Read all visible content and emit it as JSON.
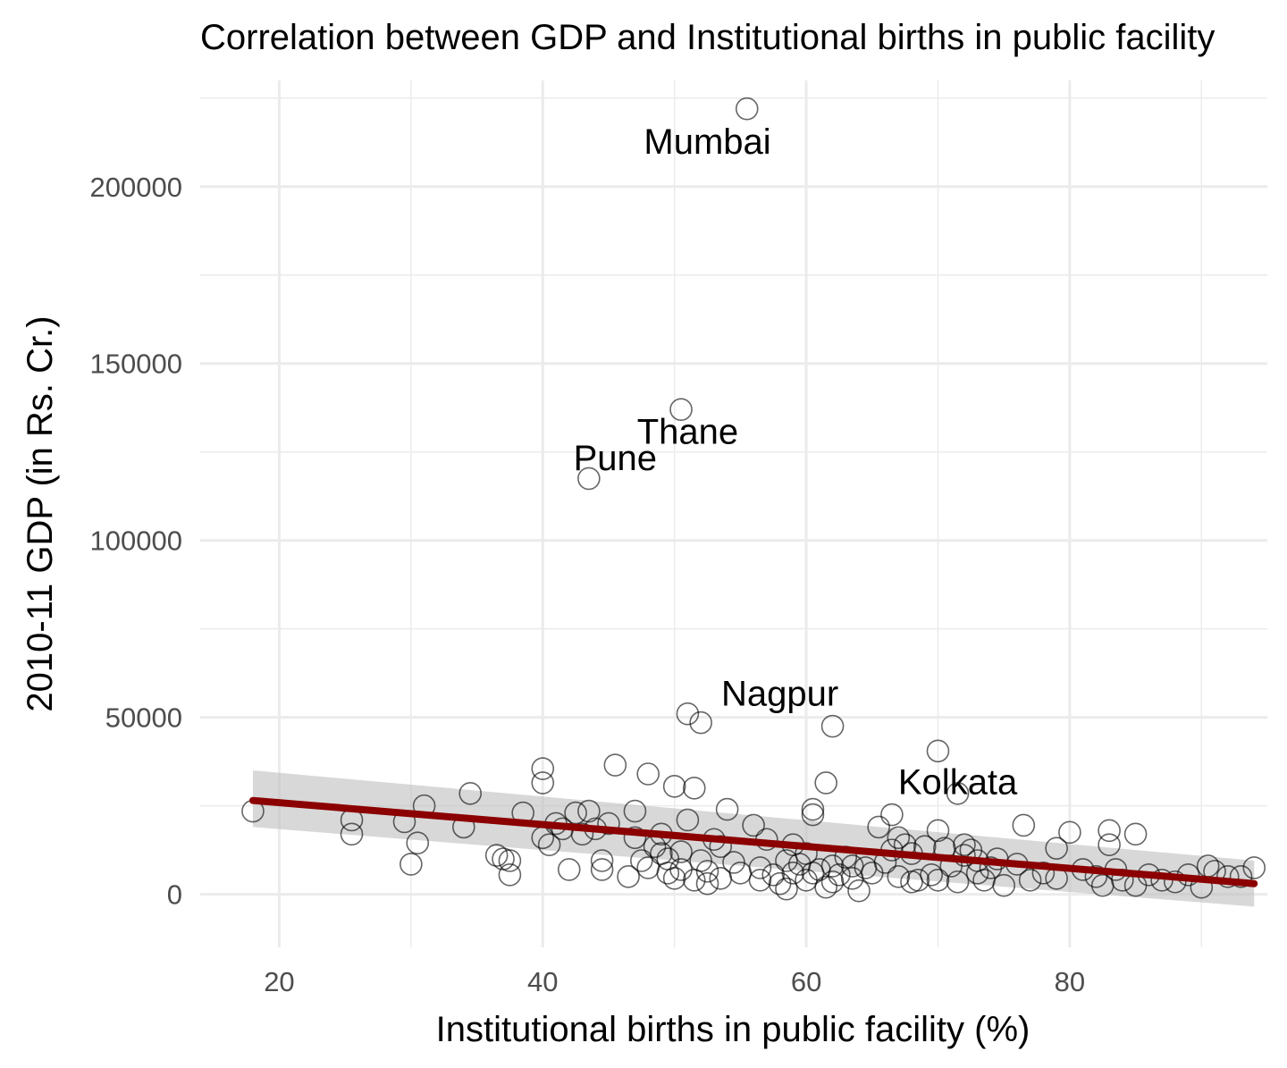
{
  "chart_data": {
    "type": "scatter",
    "title": "Correlation between GDP and Institutional births in public facility",
    "xlabel": "Institutional births in public facility (%)",
    "ylabel": "2010-11 GDP (in Rs. Cr.)",
    "xlim": [
      14,
      95
    ],
    "ylim": [
      -15000,
      230000
    ],
    "x_ticks": [
      20,
      40,
      60,
      80
    ],
    "y_ticks": [
      0,
      50000,
      100000,
      150000,
      200000
    ],
    "x_tick_labels": [
      "20",
      "40",
      "60",
      "80"
    ],
    "y_tick_labels": [
      "0",
      "50000",
      "100000",
      "150000",
      "200000"
    ],
    "grid": true,
    "legend": "none",
    "colors": {
      "points": "#000000",
      "trend": "#8b0000",
      "ribbon": "#bebebe",
      "grid": "#ebebeb"
    },
    "trend_line": {
      "method": "linear",
      "x": [
        18,
        94
      ],
      "y": [
        26500,
        3000
      ],
      "ci_lower": [
        19000,
        -3500
      ],
      "ci_upper": [
        35000,
        9500
      ]
    },
    "annotations": [
      {
        "label": "Mumbai",
        "x": 55.5,
        "y": 222000
      },
      {
        "label": "Thane",
        "x": 50.5,
        "y": 137000
      },
      {
        "label": "Pune",
        "x": 43.5,
        "y": 117500
      },
      {
        "label": "Nagpur",
        "x": 62,
        "y": 47500
      },
      {
        "label": "Kolkata",
        "x": 71.5,
        "y": 28500
      }
    ],
    "annotation_text": [
      {
        "label": "Mumbai",
        "x": 52.5,
        "y": 212000
      },
      {
        "label": "Thane",
        "x": 51,
        "y": 130000
      },
      {
        "label": "Pune",
        "x": 45.5,
        "y": 122500
      },
      {
        "label": "Nagpur",
        "x": 58,
        "y": 56000
      },
      {
        "label": "Kolkata",
        "x": 71.5,
        "y": 31000
      }
    ],
    "points": [
      [
        18,
        23500
      ],
      [
        25.5,
        21000
      ],
      [
        25.5,
        17000
      ],
      [
        29.5,
        20500
      ],
      [
        30,
        8500
      ],
      [
        30.5,
        14500
      ],
      [
        31,
        25000
      ],
      [
        34,
        19000
      ],
      [
        34.5,
        28500
      ],
      [
        36.5,
        11000
      ],
      [
        37,
        10000
      ],
      [
        37.5,
        5500
      ],
      [
        37.5,
        9500
      ],
      [
        38.5,
        23000
      ],
      [
        40,
        16000
      ],
      [
        40,
        35500
      ],
      [
        40,
        31500
      ],
      [
        40.5,
        14000
      ],
      [
        41,
        20000
      ],
      [
        41.5,
        18500
      ],
      [
        42,
        7000
      ],
      [
        42.5,
        23000
      ],
      [
        43,
        17000
      ],
      [
        43.5,
        117500
      ],
      [
        43.5,
        23500
      ],
      [
        44,
        18500
      ],
      [
        44.5,
        7000
      ],
      [
        44.5,
        9500
      ],
      [
        45,
        20000
      ],
      [
        45.5,
        36500
      ],
      [
        46.5,
        5000
      ],
      [
        47,
        23500
      ],
      [
        47,
        16000
      ],
      [
        47.5,
        9500
      ],
      [
        48,
        34000
      ],
      [
        48,
        7500
      ],
      [
        48.5,
        13500
      ],
      [
        49,
        11500
      ],
      [
        49,
        17000
      ],
      [
        49.5,
        6000
      ],
      [
        49.5,
        10000
      ],
      [
        50,
        30500
      ],
      [
        50,
        4500
      ],
      [
        50.5,
        137000
      ],
      [
        50.5,
        12000
      ],
      [
        50.5,
        7000
      ],
      [
        51,
        51000
      ],
      [
        51,
        21000
      ],
      [
        51.5,
        4000
      ],
      [
        51.5,
        30000
      ],
      [
        52,
        48500
      ],
      [
        52,
        9500
      ],
      [
        52.5,
        6500
      ],
      [
        52.5,
        3000
      ],
      [
        53,
        15500
      ],
      [
        53.5,
        13500
      ],
      [
        53.5,
        4500
      ],
      [
        54,
        24000
      ],
      [
        54.5,
        9000
      ],
      [
        55,
        6000
      ],
      [
        55.5,
        222000
      ],
      [
        56,
        19500
      ],
      [
        56.5,
        4000
      ],
      [
        56.5,
        7500
      ],
      [
        57,
        15500
      ],
      [
        57.5,
        5500
      ],
      [
        58,
        3000
      ],
      [
        58.5,
        1500
      ],
      [
        58.5,
        9500
      ],
      [
        59,
        14000
      ],
      [
        59,
        6000
      ],
      [
        59.5,
        8500
      ],
      [
        60,
        4000
      ],
      [
        60,
        11500
      ],
      [
        60.5,
        6000
      ],
      [
        60.5,
        24000
      ],
      [
        60.5,
        22500
      ],
      [
        61,
        7000
      ],
      [
        61.5,
        31500
      ],
      [
        61.5,
        2000
      ],
      [
        62,
        47500
      ],
      [
        62,
        8000
      ],
      [
        62,
        3500
      ],
      [
        62.5,
        5500
      ],
      [
        63,
        10500
      ],
      [
        63.5,
        8000
      ],
      [
        63.5,
        4500
      ],
      [
        64,
        1000
      ],
      [
        64.5,
        7500
      ],
      [
        65,
        6000
      ],
      [
        65.5,
        19000
      ],
      [
        66,
        9000
      ],
      [
        66.5,
        22500
      ],
      [
        66.5,
        12500
      ],
      [
        67,
        16000
      ],
      [
        67,
        5000
      ],
      [
        67.5,
        14000
      ],
      [
        68,
        11500
      ],
      [
        68,
        3500
      ],
      [
        68.5,
        4000
      ],
      [
        69,
        13500
      ],
      [
        69.5,
        5500
      ],
      [
        70,
        40500
      ],
      [
        70,
        18000
      ],
      [
        70,
        4000
      ],
      [
        70.5,
        13000
      ],
      [
        71,
        8000
      ],
      [
        71.5,
        28500
      ],
      [
        71.5,
        3500
      ],
      [
        72,
        11000
      ],
      [
        72,
        14000
      ],
      [
        72.5,
        12500
      ],
      [
        73,
        6000
      ],
      [
        73,
        9500
      ],
      [
        73.5,
        4000
      ],
      [
        74,
        7500
      ],
      [
        74.5,
        10000
      ],
      [
        75,
        2500
      ],
      [
        76,
        8500
      ],
      [
        76.5,
        19500
      ],
      [
        77,
        4000
      ],
      [
        78,
        6000
      ],
      [
        79,
        13000
      ],
      [
        79,
        4500
      ],
      [
        80,
        17500
      ],
      [
        81,
        7000
      ],
      [
        82,
        5000
      ],
      [
        82.5,
        2500
      ],
      [
        83,
        18000
      ],
      [
        83,
        14000
      ],
      [
        83.5,
        7000
      ],
      [
        84,
        4000
      ],
      [
        85,
        17000
      ],
      [
        85,
        2500
      ],
      [
        86,
        5500
      ],
      [
        87,
        4000
      ],
      [
        88,
        3500
      ],
      [
        89,
        5500
      ],
      [
        90,
        2000
      ],
      [
        90.5,
        8000
      ],
      [
        91,
        6500
      ],
      [
        92,
        5000
      ],
      [
        93,
        5000
      ],
      [
        94,
        7500
      ]
    ]
  }
}
